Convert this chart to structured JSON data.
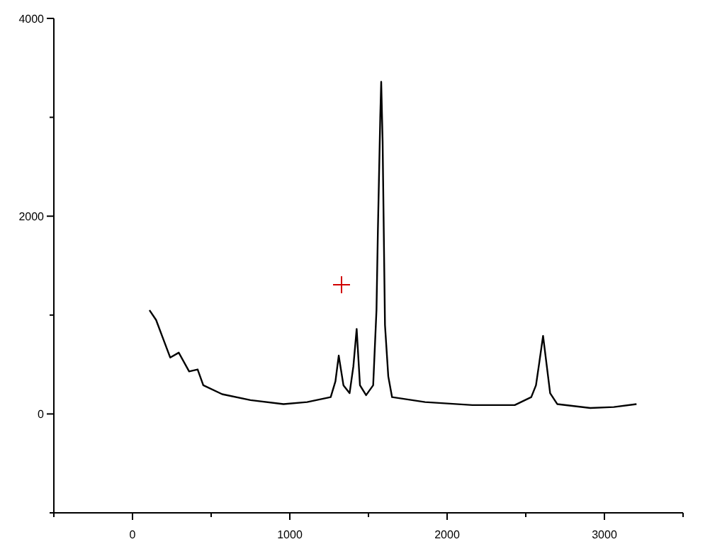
{
  "chart_data": {
    "type": "line",
    "xlim": [
      -500,
      3500
    ],
    "ylim": [
      -1000,
      4000
    ],
    "xticks": [
      {
        "value": -500,
        "label": null
      },
      0,
      {
        "value": 500,
        "label": null
      },
      1000,
      {
        "value": 1500,
        "label": null
      },
      2000,
      {
        "value": 2500,
        "label": null
      },
      3000,
      {
        "value": 3500,
        "label": null
      }
    ],
    "yticks": [
      {
        "value": -1000,
        "label": null
      },
      0,
      {
        "value": 1000,
        "label": null
      },
      2000,
      {
        "value": 3000,
        "label": null
      },
      4000
    ],
    "grid": false,
    "marker": "none",
    "line_style": "solid",
    "x": [
      108,
      150,
      195,
      240,
      294,
      360,
      414,
      450,
      570,
      750,
      960,
      1110,
      1260,
      1290,
      1311,
      1341,
      1380,
      1404,
      1425,
      1446,
      1485,
      1530,
      1551,
      1560,
      1575,
      1581,
      1590,
      1605,
      1626,
      1650,
      1860,
      2160,
      2430,
      2535,
      2565,
      2586,
      2610,
      2634,
      2655,
      2700,
      2910,
      3060,
      3204
    ],
    "series": [
      {
        "color": "#000000",
        "values": [
          1050,
          950,
          760,
          570,
          620,
          430,
          450,
          290,
          200,
          140,
          100,
          120,
          170,
          330,
          590,
          290,
          210,
          480,
          860,
          290,
          190,
          290,
          1050,
          1860,
          3000,
          3360,
          2760,
          900,
          380,
          170,
          120,
          90,
          90,
          170,
          290,
          520,
          790,
          480,
          210,
          100,
          60,
          70,
          100
        ]
      }
    ]
  }
}
